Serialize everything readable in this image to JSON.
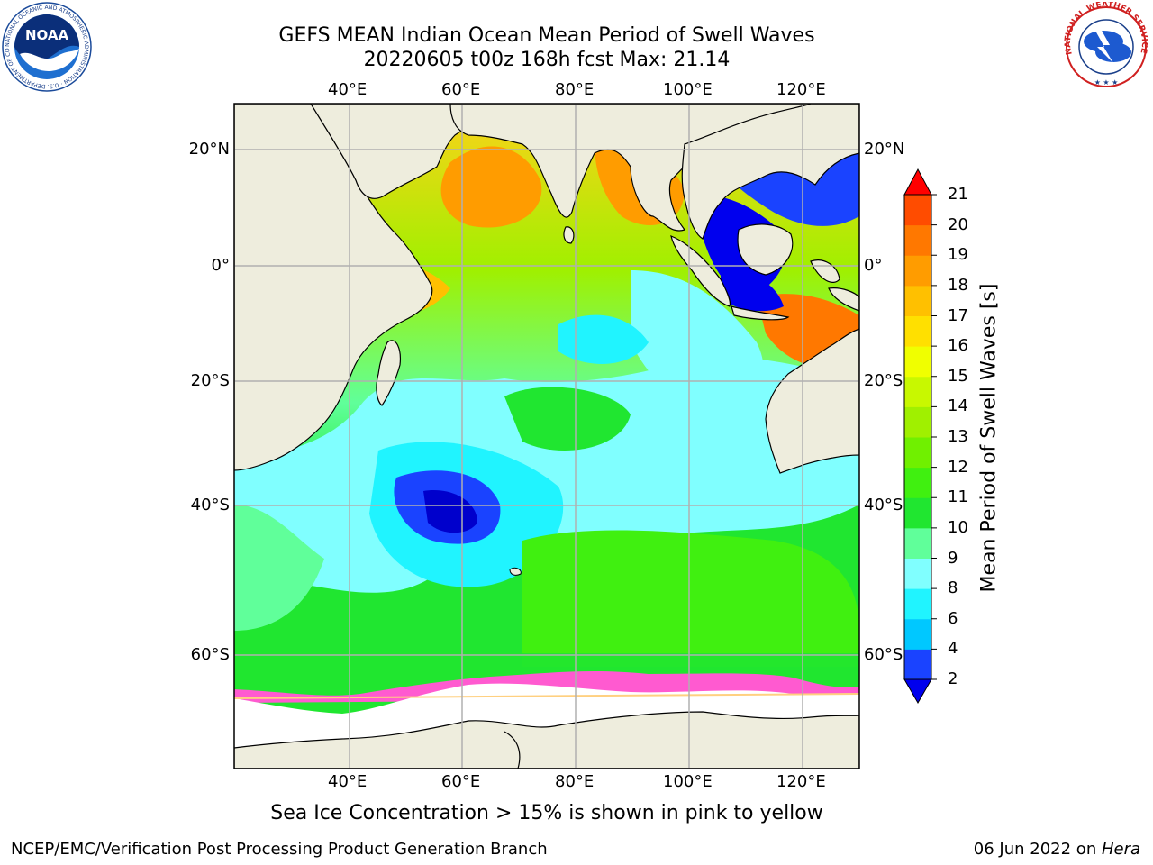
{
  "title": {
    "line1": "GEFS MEAN Indian Ocean Mean Period of Swell Waves",
    "line2": "20220605 t00z 168h fcst   Max: 21.14"
  },
  "map": {
    "region": "Indian Ocean",
    "lon_range_deg": [
      20,
      130
    ],
    "lat_range_deg": [
      -72,
      28
    ],
    "graticule": true,
    "top_lon_labels": [
      "40°E",
      "60°E",
      "80°E",
      "100°E",
      "120°E"
    ],
    "bottom_lon_labels": [
      "40°E",
      "60°E",
      "80°E",
      "100°E",
      "120°E"
    ],
    "left_lat_labels": [
      "20°N",
      "0°",
      "20°S",
      "40°S",
      "60°S"
    ],
    "right_lat_labels": [
      "20°N",
      "0°",
      "20°S",
      "40°S",
      "60°S"
    ],
    "land_color": "#eeeddd",
    "ice_color": "#ffffff"
  },
  "colorbar": {
    "title": "Mean Period of Swell Waves [s]",
    "labels": [
      "2",
      "4",
      "6",
      "8",
      "9",
      "10",
      "11",
      "12",
      "13",
      "14",
      "15",
      "16",
      "17",
      "18",
      "19",
      "20",
      "21"
    ],
    "colors": [
      "#1a43ff",
      "#00c8ff",
      "#20f4ff",
      "#80ffff",
      "#60ff9a",
      "#20e630",
      "#40f010",
      "#70f000",
      "#a0f000",
      "#c8f800",
      "#f0ff00",
      "#ffe000",
      "#ffc000",
      "#ff9c00",
      "#ff7800",
      "#ff4c00"
    ],
    "under_color": "#0000ee",
    "over_color": "#ff0000"
  },
  "caption": "Sea Ice Concentration > 15% is shown in pink to yellow",
  "footer": {
    "left": "NCEP/EMC/Verification Post Processing Product Generation Branch",
    "date": "06 Jun 2022 on ",
    "host": "Hera"
  },
  "logos": {
    "noaa_text": "NOAA",
    "noaa_ring": "NATIONAL OCEANIC AND ATMOSPHERIC ADMINISTRATION · U.S. DEPARTMENT OF COMMERCE",
    "nws_ring": "NATIONAL WEATHER SERVICE"
  }
}
